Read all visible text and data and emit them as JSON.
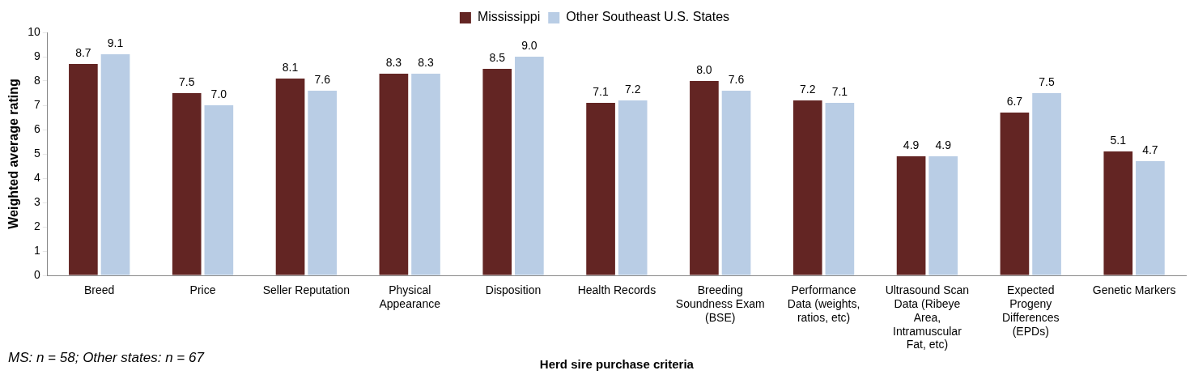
{
  "chart_data": {
    "type": "bar",
    "xlabel": "Herd sire purchase criteria",
    "ylabel": "Weighted average rating",
    "categories": [
      "Breed",
      "Price",
      "Seller Reputation",
      "Physical Appearance",
      "Disposition",
      "Health Records",
      "Breeding Soundness Exam (BSE)",
      "Performance Data (weights, ratios, etc)",
      "Ultrasound Scan Data (Ribeye Area, Intramuscular Fat, etc)",
      "Expected Progeny Differences (EPDs)",
      "Genetic Markers"
    ],
    "series": [
      {
        "name": "Mississippi",
        "color": "#632523",
        "values": [
          8.7,
          7.5,
          8.1,
          8.3,
          8.5,
          7.1,
          8.0,
          7.2,
          4.9,
          6.7,
          5.1
        ],
        "value_labels": [
          "8.7",
          "7.5",
          "8.1",
          "8.3",
          "8.5",
          "7.1",
          "8.0",
          "7.2",
          "4.9",
          "6.7",
          "5.1"
        ]
      },
      {
        "name": "Other Southeast U.S. States",
        "color": "#b9cde5",
        "values": [
          9.1,
          7.0,
          7.6,
          8.3,
          9.0,
          7.2,
          7.6,
          7.1,
          4.9,
          7.5,
          4.7
        ],
        "value_labels": [
          "9.1",
          "7.0",
          "7.6",
          "8.3",
          "9.0",
          "7.2",
          "7.6",
          "7.1",
          "4.9",
          "7.5",
          "4.7"
        ]
      }
    ],
    "ylim": [
      0,
      10
    ],
    "yticks": [
      0,
      1,
      2,
      3,
      4,
      5,
      6,
      7,
      8,
      9,
      10
    ],
    "grid": false,
    "legend": "top",
    "annotations": [
      "MS: n = 58; Other states: n = 67"
    ]
  }
}
